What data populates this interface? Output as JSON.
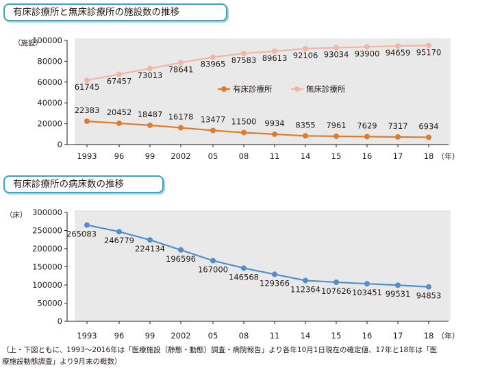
{
  "chart_data": [
    {
      "type": "line",
      "title": "有床診療所と無床診療所の施設数の推移",
      "ylabel": "（施設）",
      "xlabel": "（年）",
      "categories": [
        "1993",
        "96",
        "99",
        "2002",
        "05",
        "08",
        "11",
        "14",
        "15",
        "16",
        "17",
        "18"
      ],
      "ylim": [
        0,
        100000
      ],
      "yticks": [
        "0",
        "20000",
        "40000",
        "60000",
        "80000",
        "100000"
      ],
      "grid": false,
      "legend": "center-right",
      "series": [
        {
          "name": "有床診療所",
          "color": "#e07b2c",
          "values": [
            22383,
            20452,
            18487,
            16178,
            13477,
            11500,
            9934,
            8355,
            7961,
            7629,
            7317,
            6934
          ],
          "labels": [
            "22383",
            "20452",
            "18487",
            "16178",
            "13477",
            "11500",
            "9934",
            "8355",
            "7961",
            "7629",
            "7317",
            "6934"
          ]
        },
        {
          "name": "無床診療所",
          "color": "#f1b7a2",
          "values": [
            61745,
            67457,
            73013,
            78641,
            83965,
            87583,
            89613,
            92106,
            93034,
            93900,
            94659,
            95170
          ],
          "labels": [
            "61745",
            "67457",
            "73013",
            "78641",
            "83965",
            "87583",
            "89613",
            "92106",
            "93034",
            "93900",
            "94659",
            "95170"
          ]
        }
      ]
    },
    {
      "type": "line",
      "title": "有床診療所の病床数の推移",
      "ylabel": "（床）",
      "xlabel": "（年）",
      "categories": [
        "1993",
        "96",
        "99",
        "2002",
        "05",
        "08",
        "11",
        "14",
        "15",
        "16",
        "17",
        "18"
      ],
      "ylim": [
        0,
        300000
      ],
      "yticks": [
        "0",
        "50000",
        "100000",
        "150000",
        "200000",
        "250000",
        "300000"
      ],
      "grid": false,
      "series": [
        {
          "color": "#4f8fce",
          "values": [
            265083,
            246779,
            224134,
            196596,
            167000,
            146568,
            129366,
            112364,
            107626,
            103451,
            99531,
            94853
          ],
          "labels": [
            "265083",
            "246779",
            "224134",
            "196596",
            "167000",
            "146568",
            "129366",
            "112364",
            "107626",
            "103451",
            "99531",
            "94853"
          ]
        }
      ]
    }
  ],
  "source_line1": "（上・下図ともに、1993～2016年は「医療施設（静態・動態）調査・病院報告」より各年10月1日現在の確定値、17年と18年は「医",
  "source_line2": "療施設動態調査」より9月末の概数）"
}
